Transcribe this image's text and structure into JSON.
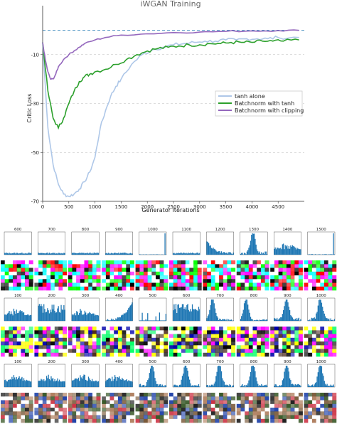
{
  "chart_data": {
    "type": "line",
    "title": "iWGAN Training",
    "xlabel": "Generator Iterations",
    "ylabel": "Critic Loss",
    "xlim": [
      0,
      5000
    ],
    "ylim": [
      -70,
      10
    ],
    "xticks": [
      0,
      500,
      1000,
      1500,
      2000,
      2500,
      3000,
      3500,
      4000,
      4500
    ],
    "yticks": [
      -10,
      -30,
      -50,
      -70
    ],
    "grid": "dashed",
    "reference_line": 0,
    "legend_position": "center-right",
    "series": [
      {
        "name": "tanh alone",
        "color": "#aec7e8",
        "x": [
          0,
          100,
          200,
          300,
          400,
          500,
          600,
          700,
          800,
          900,
          1000,
          1100,
          1200,
          1300,
          1400,
          1500,
          1700,
          1900,
          2100,
          2300,
          2500,
          2700,
          2900,
          3100,
          3300,
          3500,
          3700,
          3900,
          4100,
          4300,
          4500,
          4900
        ],
        "y": [
          -5,
          -40,
          -55,
          -63,
          -67,
          -68,
          -67,
          -65,
          -62,
          -58,
          -52,
          -40,
          -33,
          -27,
          -23,
          -20,
          -14,
          -10,
          -8,
          -7,
          -6,
          -5.5,
          -5,
          -4.5,
          -4.5,
          -4,
          -4,
          -3.5,
          -3.5,
          -3.5,
          -3,
          -3
        ]
      },
      {
        "name": "Batchnorm with tanh",
        "color": "#2ca02c",
        "x": [
          0,
          100,
          200,
          300,
          400,
          500,
          600,
          700,
          800,
          900,
          1000,
          1200,
          1400,
          1600,
          1800,
          2000,
          2200,
          2400,
          2600,
          2800,
          3000,
          3200,
          3400,
          3600,
          3800,
          4000,
          4200,
          4400,
          4600,
          4900
        ],
        "y": [
          -5,
          -25,
          -36,
          -40,
          -36,
          -30,
          -25,
          -21,
          -19,
          -18,
          -17,
          -16,
          -14,
          -12,
          -10,
          -8.5,
          -7.5,
          -7,
          -6.5,
          -6,
          -6,
          -5.5,
          -5.5,
          -5,
          -5,
          -5,
          -4.5,
          -4.5,
          -4.5,
          -4
        ]
      },
      {
        "name": "Batchnorm with clipping",
        "color": "#9467bd",
        "x": [
          0,
          50,
          100,
          150,
          200,
          250,
          300,
          400,
          500,
          600,
          700,
          800,
          1000,
          1200,
          1500,
          2000,
          2500,
          3000,
          3500,
          4000,
          4500,
          4900
        ],
        "y": [
          -5,
          -12,
          -17,
          -20,
          -20,
          -18,
          -15,
          -12,
          -10,
          -8.5,
          -7,
          -5.5,
          -4,
          -3,
          -2,
          -1.5,
          -1,
          -0.8,
          -0.5,
          -0.3,
          -0.2,
          -0.1
        ]
      }
    ]
  },
  "histogram_rows": [
    {
      "labels": [
        "600",
        "700",
        "800",
        "900",
        "1000",
        "1100",
        "1200",
        "1300",
        "1400",
        "1500"
      ],
      "shapes": [
        "flat",
        "flat",
        "flat",
        "flat",
        "spike",
        "flat",
        "left-decay",
        "peaked",
        "spread",
        "spike"
      ]
    },
    {
      "labels": [
        "100",
        "200",
        "300",
        "400",
        "500",
        "600",
        "700",
        "800",
        "900",
        "1000"
      ],
      "shapes": [
        "spread",
        "wide",
        "spread",
        "right-rise",
        "sparse",
        "wide",
        "left-peak",
        "left-peak",
        "peaked",
        "peaked"
      ]
    },
    {
      "labels": [
        "100",
        "200",
        "300",
        "400",
        "500",
        "600",
        "700",
        "800",
        "900",
        "1000"
      ],
      "shapes": [
        "spread",
        "spread",
        "spread",
        "spread",
        "peaked",
        "peaked",
        "peaked",
        "peaked",
        "peaked",
        "peaked"
      ]
    }
  ],
  "texture_rows": [
    {
      "palette": [
        "#ff00ff",
        "#00ff00",
        "#000000",
        "#ffffff",
        "#00ffff",
        "#ff0000"
      ]
    },
    {
      "palette": [
        "#ff00ff",
        "#00ff66",
        "#0000aa",
        "#ffffff",
        "#000000",
        "#ffff00",
        "#4d2d1f"
      ]
    },
    {
      "palette": [
        "#7a5a3a",
        "#3a5a2a",
        "#202020",
        "#b08060",
        "#cc3344",
        "#2244aa",
        "#ffffff"
      ]
    }
  ]
}
